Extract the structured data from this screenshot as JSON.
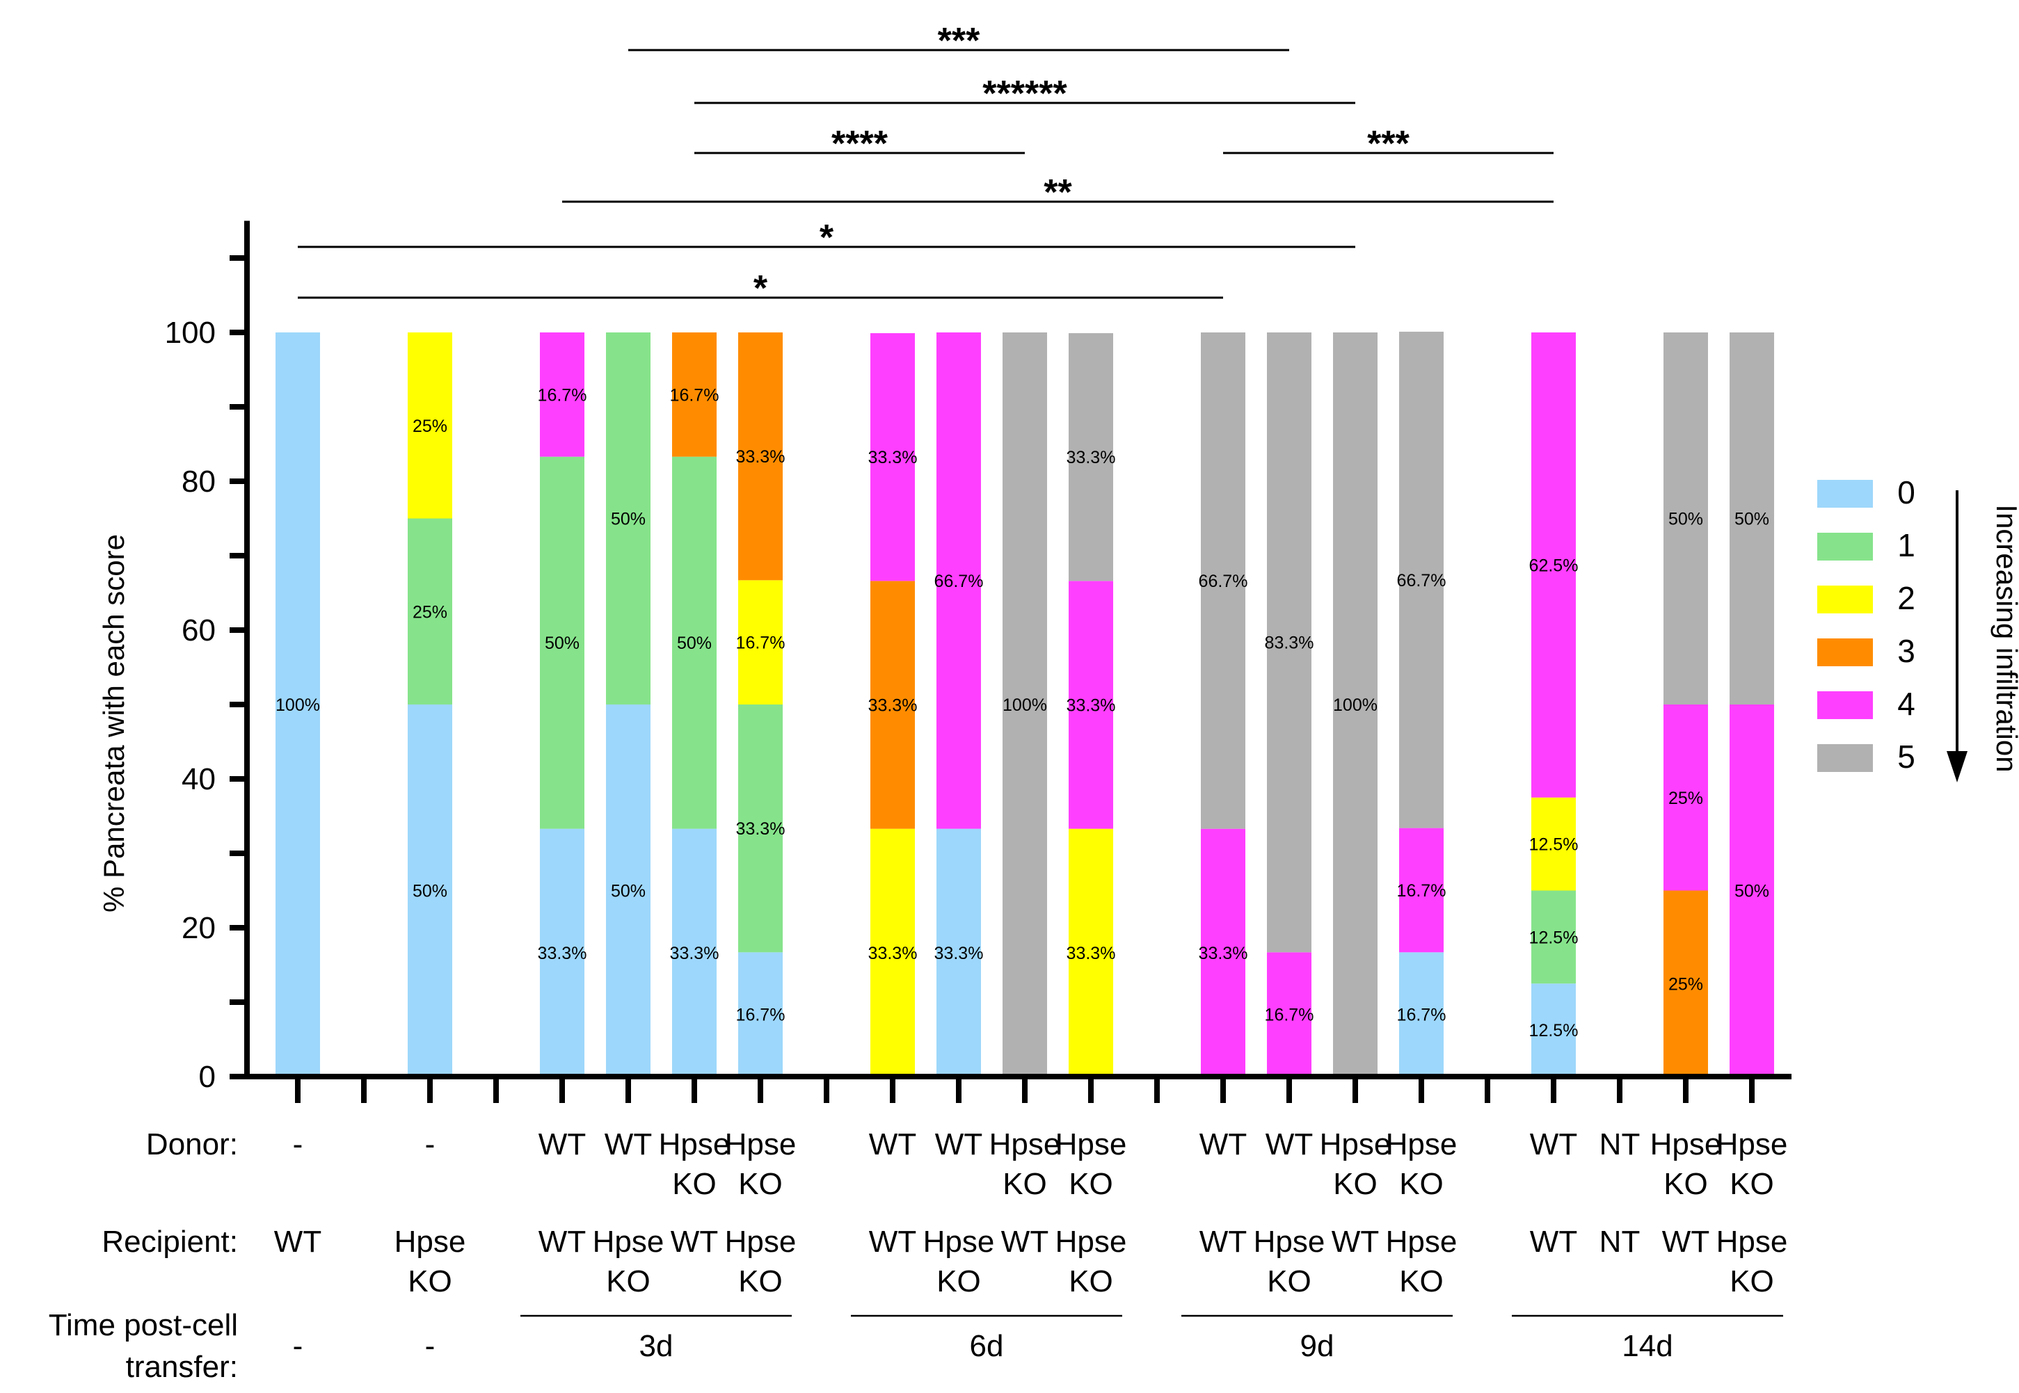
{
  "chart_data": {
    "type": "bar",
    "stacked": true,
    "ylabel": "% Pancreata with each score",
    "ylim": [
      0,
      115
    ],
    "yticks": [
      0,
      20,
      40,
      60,
      80,
      100
    ],
    "ytick_labels": [
      "0",
      "20",
      "40",
      "60",
      "80",
      "100"
    ],
    "legend": {
      "placement": "right",
      "items": [
        {
          "label": "0",
          "color": "#9dd7fb"
        },
        {
          "label": "1",
          "color": "#86e38b"
        },
        {
          "label": "2",
          "color": "#ffff00"
        },
        {
          "label": "3",
          "color": "#ff8c00"
        },
        {
          "label": "4",
          "color": "#ff3fff"
        },
        {
          "label": "5",
          "color": "#b1b1b1"
        }
      ],
      "arrow_label": "Increasing infiltration"
    },
    "row_labels": {
      "donor": "Donor:",
      "recipient": "Recipient:",
      "time_1": "Time post-cell",
      "time_2": "transfer:"
    },
    "bars": [
      {
        "slot": 0,
        "donor": [
          "-"
        ],
        "recipient": [
          "WT"
        ],
        "time": "-",
        "segments": [
          {
            "score": 0,
            "value": 100,
            "label": "100%"
          }
        ]
      },
      {
        "slot": 2,
        "donor": [
          "-"
        ],
        "recipient": [
          "Hpse",
          "KO"
        ],
        "time": "-",
        "segments": [
          {
            "score": 0,
            "value": 50,
            "label": "50%"
          },
          {
            "score": 1,
            "value": 25,
            "label": "25%"
          },
          {
            "score": 2,
            "value": 25,
            "label": "25%"
          }
        ]
      },
      {
        "slot": 4,
        "donor": [
          "WT"
        ],
        "recipient": [
          "WT"
        ],
        "segments": [
          {
            "score": 0,
            "value": 33.3,
            "label": "33.3%"
          },
          {
            "score": 1,
            "value": 50,
            "label": "50%"
          },
          {
            "score": 4,
            "value": 16.7,
            "label": "16.7%"
          }
        ]
      },
      {
        "slot": 5,
        "donor": [
          "WT"
        ],
        "recipient": [
          "Hpse",
          "KO"
        ],
        "segments": [
          {
            "score": 0,
            "value": 50,
            "label": "50%"
          },
          {
            "score": 1,
            "value": 50,
            "label": "50%"
          }
        ]
      },
      {
        "slot": 6,
        "donor": [
          "Hpse",
          "KO"
        ],
        "recipient": [
          "WT"
        ],
        "segments": [
          {
            "score": 0,
            "value": 33.3,
            "label": "33.3%"
          },
          {
            "score": 1,
            "value": 50,
            "label": "50%"
          },
          {
            "score": 3,
            "value": 16.7,
            "label": "16.7%"
          }
        ]
      },
      {
        "slot": 7,
        "donor": [
          "Hpse",
          "KO"
        ],
        "recipient": [
          "Hpse",
          "KO"
        ],
        "segments": [
          {
            "score": 0,
            "value": 16.7,
            "label": "16.7%"
          },
          {
            "score": 1,
            "value": 33.3,
            "label": "33.3%"
          },
          {
            "score": 2,
            "value": 16.7,
            "label": "16.7%"
          },
          {
            "score": 3,
            "value": 33.3,
            "label": "33.3%"
          }
        ]
      },
      {
        "slot": 9,
        "donor": [
          "WT"
        ],
        "recipient": [
          "WT"
        ],
        "segments": [
          {
            "score": 2,
            "value": 33.3,
            "label": "33.3%"
          },
          {
            "score": 3,
            "value": 33.3,
            "label": "33.3%"
          },
          {
            "score": 4,
            "value": 33.3,
            "label": "33.3%"
          }
        ]
      },
      {
        "slot": 10,
        "donor": [
          "WT"
        ],
        "recipient": [
          "Hpse",
          "KO"
        ],
        "segments": [
          {
            "score": 0,
            "value": 33.3,
            "label": "33.3%"
          },
          {
            "score": 4,
            "value": 66.7,
            "label": "66.7%"
          }
        ]
      },
      {
        "slot": 11,
        "donor": [
          "Hpse",
          "KO"
        ],
        "recipient": [
          "WT"
        ],
        "segments": [
          {
            "score": 5,
            "value": 100,
            "label": "100%"
          }
        ]
      },
      {
        "slot": 12,
        "donor": [
          "Hpse",
          "KO"
        ],
        "recipient": [
          "Hpse",
          "KO"
        ],
        "segments": [
          {
            "score": 2,
            "value": 33.3,
            "label": "33.3%"
          },
          {
            "score": 4,
            "value": 33.3,
            "label": "33.3%"
          },
          {
            "score": 5,
            "value": 33.3,
            "label": "33.3%"
          }
        ]
      },
      {
        "slot": 14,
        "donor": [
          "WT"
        ],
        "recipient": [
          "WT"
        ],
        "segments": [
          {
            "score": 4,
            "value": 33.3,
            "label": "33.3%"
          },
          {
            "score": 5,
            "value": 66.7,
            "label": "66.7%"
          }
        ]
      },
      {
        "slot": 15,
        "donor": [
          "WT"
        ],
        "recipient": [
          "Hpse",
          "KO"
        ],
        "segments": [
          {
            "score": 4,
            "value": 16.7,
            "label": "16.7%"
          },
          {
            "score": 5,
            "value": 83.3,
            "label": "83.3%"
          }
        ]
      },
      {
        "slot": 16,
        "donor": [
          "Hpse",
          "KO"
        ],
        "recipient": [
          "WT"
        ],
        "segments": [
          {
            "score": 5,
            "value": 100,
            "label": "100%"
          }
        ]
      },
      {
        "slot": 17,
        "donor": [
          "Hpse",
          "KO"
        ],
        "recipient": [
          "Hpse",
          "KO"
        ],
        "segments": [
          {
            "score": 0,
            "value": 16.7,
            "label": "16.7%"
          },
          {
            "score": 4,
            "value": 16.7,
            "label": "16.7%"
          },
          {
            "score": 5,
            "value": 66.7,
            "label": "66.7%"
          }
        ]
      },
      {
        "slot": 19,
        "donor": [
          "WT"
        ],
        "recipient": [
          "WT"
        ],
        "segments": [
          {
            "score": 0,
            "value": 12.5,
            "label": "12.5%"
          },
          {
            "score": 1,
            "value": 12.5,
            "label": "12.5%"
          },
          {
            "score": 2,
            "value": 12.5,
            "label": "12.5%"
          },
          {
            "score": 4,
            "value": 62.5,
            "label": "62.5%"
          }
        ]
      },
      {
        "slot": 20,
        "donor": [
          "NT"
        ],
        "recipient": [
          "NT"
        ],
        "segments": []
      },
      {
        "slot": 21,
        "donor": [
          "Hpse",
          "KO"
        ],
        "recipient": [
          "WT"
        ],
        "segments": [
          {
            "score": 3,
            "value": 25,
            "label": "25%"
          },
          {
            "score": 4,
            "value": 25,
            "label": "25%"
          },
          {
            "score": 5,
            "value": 50,
            "label": "50%"
          }
        ]
      },
      {
        "slot": 22,
        "donor": [
          "Hpse",
          "KO"
        ],
        "recipient": [
          "Hpse",
          "KO"
        ],
        "segments": [
          {
            "score": 4,
            "value": 50,
            "label": "50%"
          },
          {
            "score": 5,
            "value": 50,
            "label": "50%"
          }
        ]
      }
    ],
    "time_groups": [
      {
        "label": "3d",
        "from_slot": 4,
        "to_slot": 7
      },
      {
        "label": "6d",
        "from_slot": 9,
        "to_slot": 12
      },
      {
        "label": "9d",
        "from_slot": 14,
        "to_slot": 17
      },
      {
        "label": "14d",
        "from_slot": 19,
        "to_slot": 22
      }
    ],
    "significance": [
      {
        "label": "***",
        "from_slot": 5,
        "to_slot": 15,
        "level": 0,
        "color": "#000000"
      },
      {
        "label": "******",
        "from_slot": 6,
        "to_slot": 16,
        "level": 1,
        "color": "#000000"
      },
      {
        "label": "****",
        "from_slot": 6,
        "to_slot": 11,
        "level": 2,
        "color": "#000000"
      },
      {
        "label": "***",
        "from_slot": 14,
        "to_slot": 19,
        "level": 2,
        "color": "#000000"
      },
      {
        "label": "**",
        "from_slot": 4,
        "to_slot": 19,
        "level": 3,
        "color": "#000000"
      },
      {
        "label": "*",
        "from_slot": 0,
        "to_slot": 16,
        "level": 4,
        "color": "#555555"
      },
      {
        "label": "*",
        "from_slot": 0,
        "to_slot": 14,
        "level": 5,
        "color": "#000000"
      }
    ]
  }
}
